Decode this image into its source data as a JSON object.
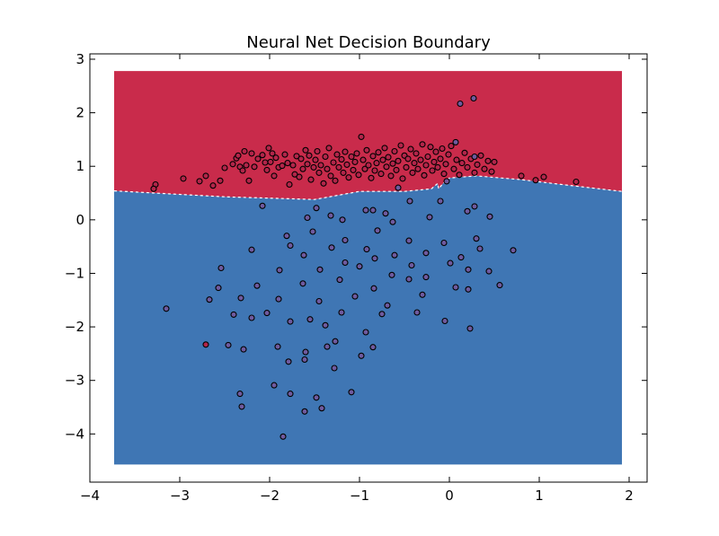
{
  "chart_data": {
    "type": "scatter",
    "title": "Neural Net Decision Boundary",
    "xlabel": "",
    "ylabel": "",
    "xlim": [
      -4,
      2.2
    ],
    "ylim": [
      -4.9,
      3.1
    ],
    "xticks": [
      -4,
      -3,
      -2,
      -1,
      0,
      1,
      2
    ],
    "yticks": [
      -4,
      -3,
      -2,
      -1,
      0,
      1,
      2,
      3
    ],
    "xtick_labels": [
      "−4",
      "−3",
      "−2",
      "−1",
      "0",
      "1",
      "2"
    ],
    "ytick_labels": [
      "−4",
      "−3",
      "−2",
      "−1",
      "0",
      "1",
      "2",
      "3"
    ],
    "grid": false,
    "decision_regions": {
      "x_range": [
        -3.73,
        1.92
      ],
      "y_range": [
        -4.57,
        2.78
      ],
      "upper_color": "#c92b4b",
      "lower_color": "#3f76b4",
      "boundary": [
        [
          -3.73,
          0.54
        ],
        [
          -2.5,
          0.43
        ],
        [
          -1.5,
          0.38
        ],
        [
          -1.0,
          0.53
        ],
        [
          -0.5,
          0.53
        ],
        [
          -0.2,
          0.58
        ],
        [
          -0.13,
          0.68
        ],
        [
          -0.12,
          0.58
        ],
        [
          -0.07,
          0.68
        ],
        [
          0.0,
          0.78
        ],
        [
          0.3,
          0.82
        ],
        [
          0.8,
          0.75
        ],
        [
          1.2,
          0.67
        ],
        [
          1.92,
          0.53
        ]
      ]
    },
    "series": [
      {
        "color": "#b2254a",
        "points": [
          [
            -3.27,
            0.66
          ],
          [
            -3.29,
            0.58
          ],
          [
            -2.96,
            0.77
          ],
          [
            -2.78,
            0.72
          ],
          [
            -2.71,
            0.82
          ],
          [
            -2.63,
            0.64
          ],
          [
            -2.55,
            0.73
          ],
          [
            -2.5,
            0.97
          ],
          [
            -2.41,
            1.04
          ],
          [
            -2.37,
            1.15
          ],
          [
            -2.35,
            1.2
          ],
          [
            -2.33,
            0.99
          ],
          [
            -2.3,
            0.92
          ],
          [
            -2.28,
            1.28
          ],
          [
            -2.26,
            1.02
          ],
          [
            -2.23,
            0.73
          ],
          [
            -2.2,
            1.24
          ],
          [
            -2.17,
            0.99
          ],
          [
            -2.13,
            1.14
          ],
          [
            -2.08,
            1.21
          ],
          [
            -2.05,
            1.07
          ],
          [
            -2.03,
            0.93
          ],
          [
            -2.01,
            1.34
          ],
          [
            -1.99,
            1.08
          ],
          [
            -1.97,
            1.24
          ],
          [
            -1.95,
            0.82
          ],
          [
            -1.93,
            1.16
          ],
          [
            -1.9,
            0.98
          ],
          [
            -1.86,
            1.01
          ],
          [
            -1.83,
            1.22
          ],
          [
            -1.8,
            1.06
          ],
          [
            -1.78,
            0.66
          ],
          [
            -1.74,
            1.02
          ],
          [
            -1.72,
            0.85
          ],
          [
            -1.7,
            1.19
          ],
          [
            -1.67,
            0.8
          ],
          [
            -1.65,
            1.14
          ],
          [
            -1.63,
            0.95
          ],
          [
            -1.6,
            1.3
          ],
          [
            -1.58,
            1.04
          ],
          [
            -1.56,
            1.2
          ],
          [
            -1.54,
            0.75
          ],
          [
            -1.51,
            0.98
          ],
          [
            -1.49,
            1.12
          ],
          [
            -1.47,
            1.28
          ],
          [
            -1.45,
            0.88
          ],
          [
            -1.43,
            1.02
          ],
          [
            -1.4,
            0.68
          ],
          [
            -1.38,
            1.18
          ],
          [
            -1.36,
            0.95
          ],
          [
            -1.34,
            1.34
          ],
          [
            -1.32,
            0.82
          ],
          [
            -1.29,
            1.07
          ],
          [
            -1.27,
            0.73
          ],
          [
            -1.25,
            1.22
          ],
          [
            -1.23,
            0.98
          ],
          [
            -1.2,
            1.13
          ],
          [
            -1.18,
            0.88
          ],
          [
            -1.16,
            1.27
          ],
          [
            -1.14,
            1.03
          ],
          [
            -1.12,
            0.79
          ],
          [
            -1.09,
            1.18
          ],
          [
            -1.07,
            0.93
          ],
          [
            -1.05,
            1.08
          ],
          [
            -1.03,
            1.24
          ],
          [
            -1.01,
            0.84
          ],
          [
            -0.98,
            1.55
          ],
          [
            -0.96,
            1.12
          ],
          [
            -0.94,
            0.95
          ],
          [
            -0.92,
            1.3
          ],
          [
            -0.9,
            1.02
          ],
          [
            -0.87,
            0.78
          ],
          [
            -0.85,
            1.19
          ],
          [
            -0.83,
            0.92
          ],
          [
            -0.81,
            1.06
          ],
          [
            -0.79,
            1.26
          ],
          [
            -0.76,
            0.86
          ],
          [
            -0.74,
            1.12
          ],
          [
            -0.72,
            1.34
          ],
          [
            -0.7,
            0.99
          ],
          [
            -0.68,
            1.17
          ],
          [
            -0.65,
            0.82
          ],
          [
            -0.63,
            1.05
          ],
          [
            -0.61,
            1.28
          ],
          [
            -0.59,
            0.93
          ],
          [
            -0.57,
            1.1
          ],
          [
            -0.54,
            1.39
          ],
          [
            -0.52,
            0.77
          ],
          [
            -0.5,
            1.2
          ],
          [
            -0.48,
            0.98
          ],
          [
            -0.46,
            1.14
          ],
          [
            -0.43,
            1.32
          ],
          [
            -0.41,
            0.88
          ],
          [
            -0.39,
            1.06
          ],
          [
            -0.37,
            1.24
          ],
          [
            -0.35,
            0.95
          ],
          [
            -0.32,
            1.12
          ],
          [
            -0.3,
            1.41
          ],
          [
            -0.28,
            0.83
          ],
          [
            -0.26,
            1.02
          ],
          [
            -0.24,
            1.18
          ],
          [
            -0.21,
            1.36
          ],
          [
            -0.19,
            0.92
          ],
          [
            -0.17,
            1.08
          ],
          [
            -0.15,
            1.27
          ],
          [
            -0.13,
            0.98
          ],
          [
            -0.1,
            1.14
          ],
          [
            -0.08,
            1.33
          ],
          [
            -0.06,
            0.86
          ],
          [
            -0.04,
            1.04
          ],
          [
            -0.01,
            1.22
          ],
          [
            0.02,
            1.38
          ],
          [
            0.05,
            0.95
          ],
          [
            0.08,
            1.12
          ],
          [
            0.11,
            0.84
          ],
          [
            0.14,
            1.06
          ],
          [
            0.17,
            1.25
          ],
          [
            0.2,
            0.98
          ],
          [
            0.24,
            1.14
          ],
          [
            0.28,
            0.88
          ],
          [
            0.31,
            1.03
          ],
          [
            0.35,
            1.2
          ],
          [
            0.39,
            0.95
          ],
          [
            0.43,
            1.1
          ],
          [
            0.47,
            0.9
          ],
          [
            0.5,
            1.08
          ],
          [
            0.8,
            0.82
          ],
          [
            0.96,
            0.74
          ],
          [
            1.05,
            0.8
          ],
          [
            1.41,
            0.71
          ],
          [
            -2.71,
            -2.33
          ]
        ]
      },
      {
        "color": "#6f5a9e",
        "points": [
          [
            0.12,
            2.17
          ],
          [
            0.27,
            2.27
          ],
          [
            0.07,
            1.45
          ],
          [
            0.28,
            1.18
          ],
          [
            -0.03,
            0.72
          ],
          [
            -0.57,
            0.6
          ],
          [
            -0.93,
            0.18
          ],
          [
            -1.48,
            0.22
          ],
          [
            -2.08,
            0.26
          ],
          [
            -0.85,
            0.18
          ],
          [
            -0.44,
            0.35
          ],
          [
            -0.1,
            0.35
          ],
          [
            0.28,
            0.25
          ],
          [
            0.2,
            0.16
          ],
          [
            -0.71,
            0.12
          ],
          [
            -1.32,
            0.08
          ],
          [
            -1.58,
            0.04
          ],
          [
            -1.19,
            0.0
          ],
          [
            -0.63,
            -0.04
          ],
          [
            -0.22,
            0.05
          ],
          [
            0.45,
            0.06
          ],
          [
            -1.81,
            -0.3
          ],
          [
            -1.52,
            -0.22
          ],
          [
            -1.16,
            -0.38
          ],
          [
            -0.8,
            -0.2
          ],
          [
            -0.45,
            -0.39
          ],
          [
            -0.06,
            -0.43
          ],
          [
            0.3,
            -0.35
          ],
          [
            -1.77,
            -0.48
          ],
          [
            -1.31,
            -0.52
          ],
          [
            -0.92,
            -0.55
          ],
          [
            -0.61,
            -0.66
          ],
          [
            -0.26,
            -0.62
          ],
          [
            0.13,
            -0.7
          ],
          [
            0.34,
            -0.54
          ],
          [
            -2.2,
            -0.56
          ],
          [
            -1.62,
            -0.66
          ],
          [
            -1.16,
            -0.8
          ],
          [
            -0.83,
            -0.72
          ],
          [
            -0.42,
            -0.85
          ],
          [
            0.01,
            -0.81
          ],
          [
            0.71,
            -0.57
          ],
          [
            -2.54,
            -0.9
          ],
          [
            -1.89,
            -0.94
          ],
          [
            -1.44,
            -0.93
          ],
          [
            -1.0,
            -0.87
          ],
          [
            -0.64,
            -1.03
          ],
          [
            -0.26,
            -1.07
          ],
          [
            0.21,
            -0.93
          ],
          [
            0.44,
            -0.96
          ],
          [
            -2.57,
            -1.27
          ],
          [
            -2.14,
            -1.23
          ],
          [
            -1.63,
            -1.19
          ],
          [
            -1.22,
            -1.12
          ],
          [
            -0.84,
            -1.28
          ],
          [
            -0.45,
            -1.11
          ],
          [
            0.07,
            -1.26
          ],
          [
            0.21,
            -1.3
          ],
          [
            -2.67,
            -1.49
          ],
          [
            -2.32,
            -1.46
          ],
          [
            -1.9,
            -1.48
          ],
          [
            -1.45,
            -1.52
          ],
          [
            -1.05,
            -1.43
          ],
          [
            -0.69,
            -1.6
          ],
          [
            -0.3,
            -1.4
          ],
          [
            0.56,
            -1.22
          ],
          [
            -3.15,
            -1.66
          ],
          [
            -2.4,
            -1.77
          ],
          [
            -2.03,
            -1.74
          ],
          [
            -1.55,
            -1.86
          ],
          [
            -1.2,
            -1.73
          ],
          [
            -0.75,
            -1.76
          ],
          [
            -0.36,
            -1.73
          ],
          [
            -0.05,
            -1.89
          ],
          [
            -2.46,
            -2.34
          ],
          [
            -2.2,
            -1.83
          ],
          [
            -1.77,
            -1.9
          ],
          [
            -1.38,
            -1.97
          ],
          [
            -0.93,
            -2.1
          ],
          [
            0.23,
            -2.03
          ],
          [
            -1.91,
            -2.37
          ],
          [
            -1.6,
            -2.47
          ],
          [
            -1.27,
            -2.27
          ],
          [
            -0.85,
            -2.38
          ],
          [
            -1.79,
            -2.65
          ],
          [
            -1.61,
            -2.61
          ],
          [
            -1.28,
            -2.77
          ],
          [
            -0.98,
            -2.54
          ],
          [
            -2.33,
            -3.25
          ],
          [
            -2.31,
            -3.49
          ],
          [
            -1.95,
            -3.09
          ],
          [
            -1.77,
            -3.25
          ],
          [
            -1.48,
            -3.32
          ],
          [
            -1.09,
            -3.22
          ],
          [
            -1.61,
            -3.58
          ],
          [
            -1.42,
            -3.52
          ],
          [
            -1.85,
            -4.05
          ],
          [
            -2.29,
            -2.42
          ],
          [
            -1.36,
            -2.37
          ]
        ]
      }
    ]
  }
}
